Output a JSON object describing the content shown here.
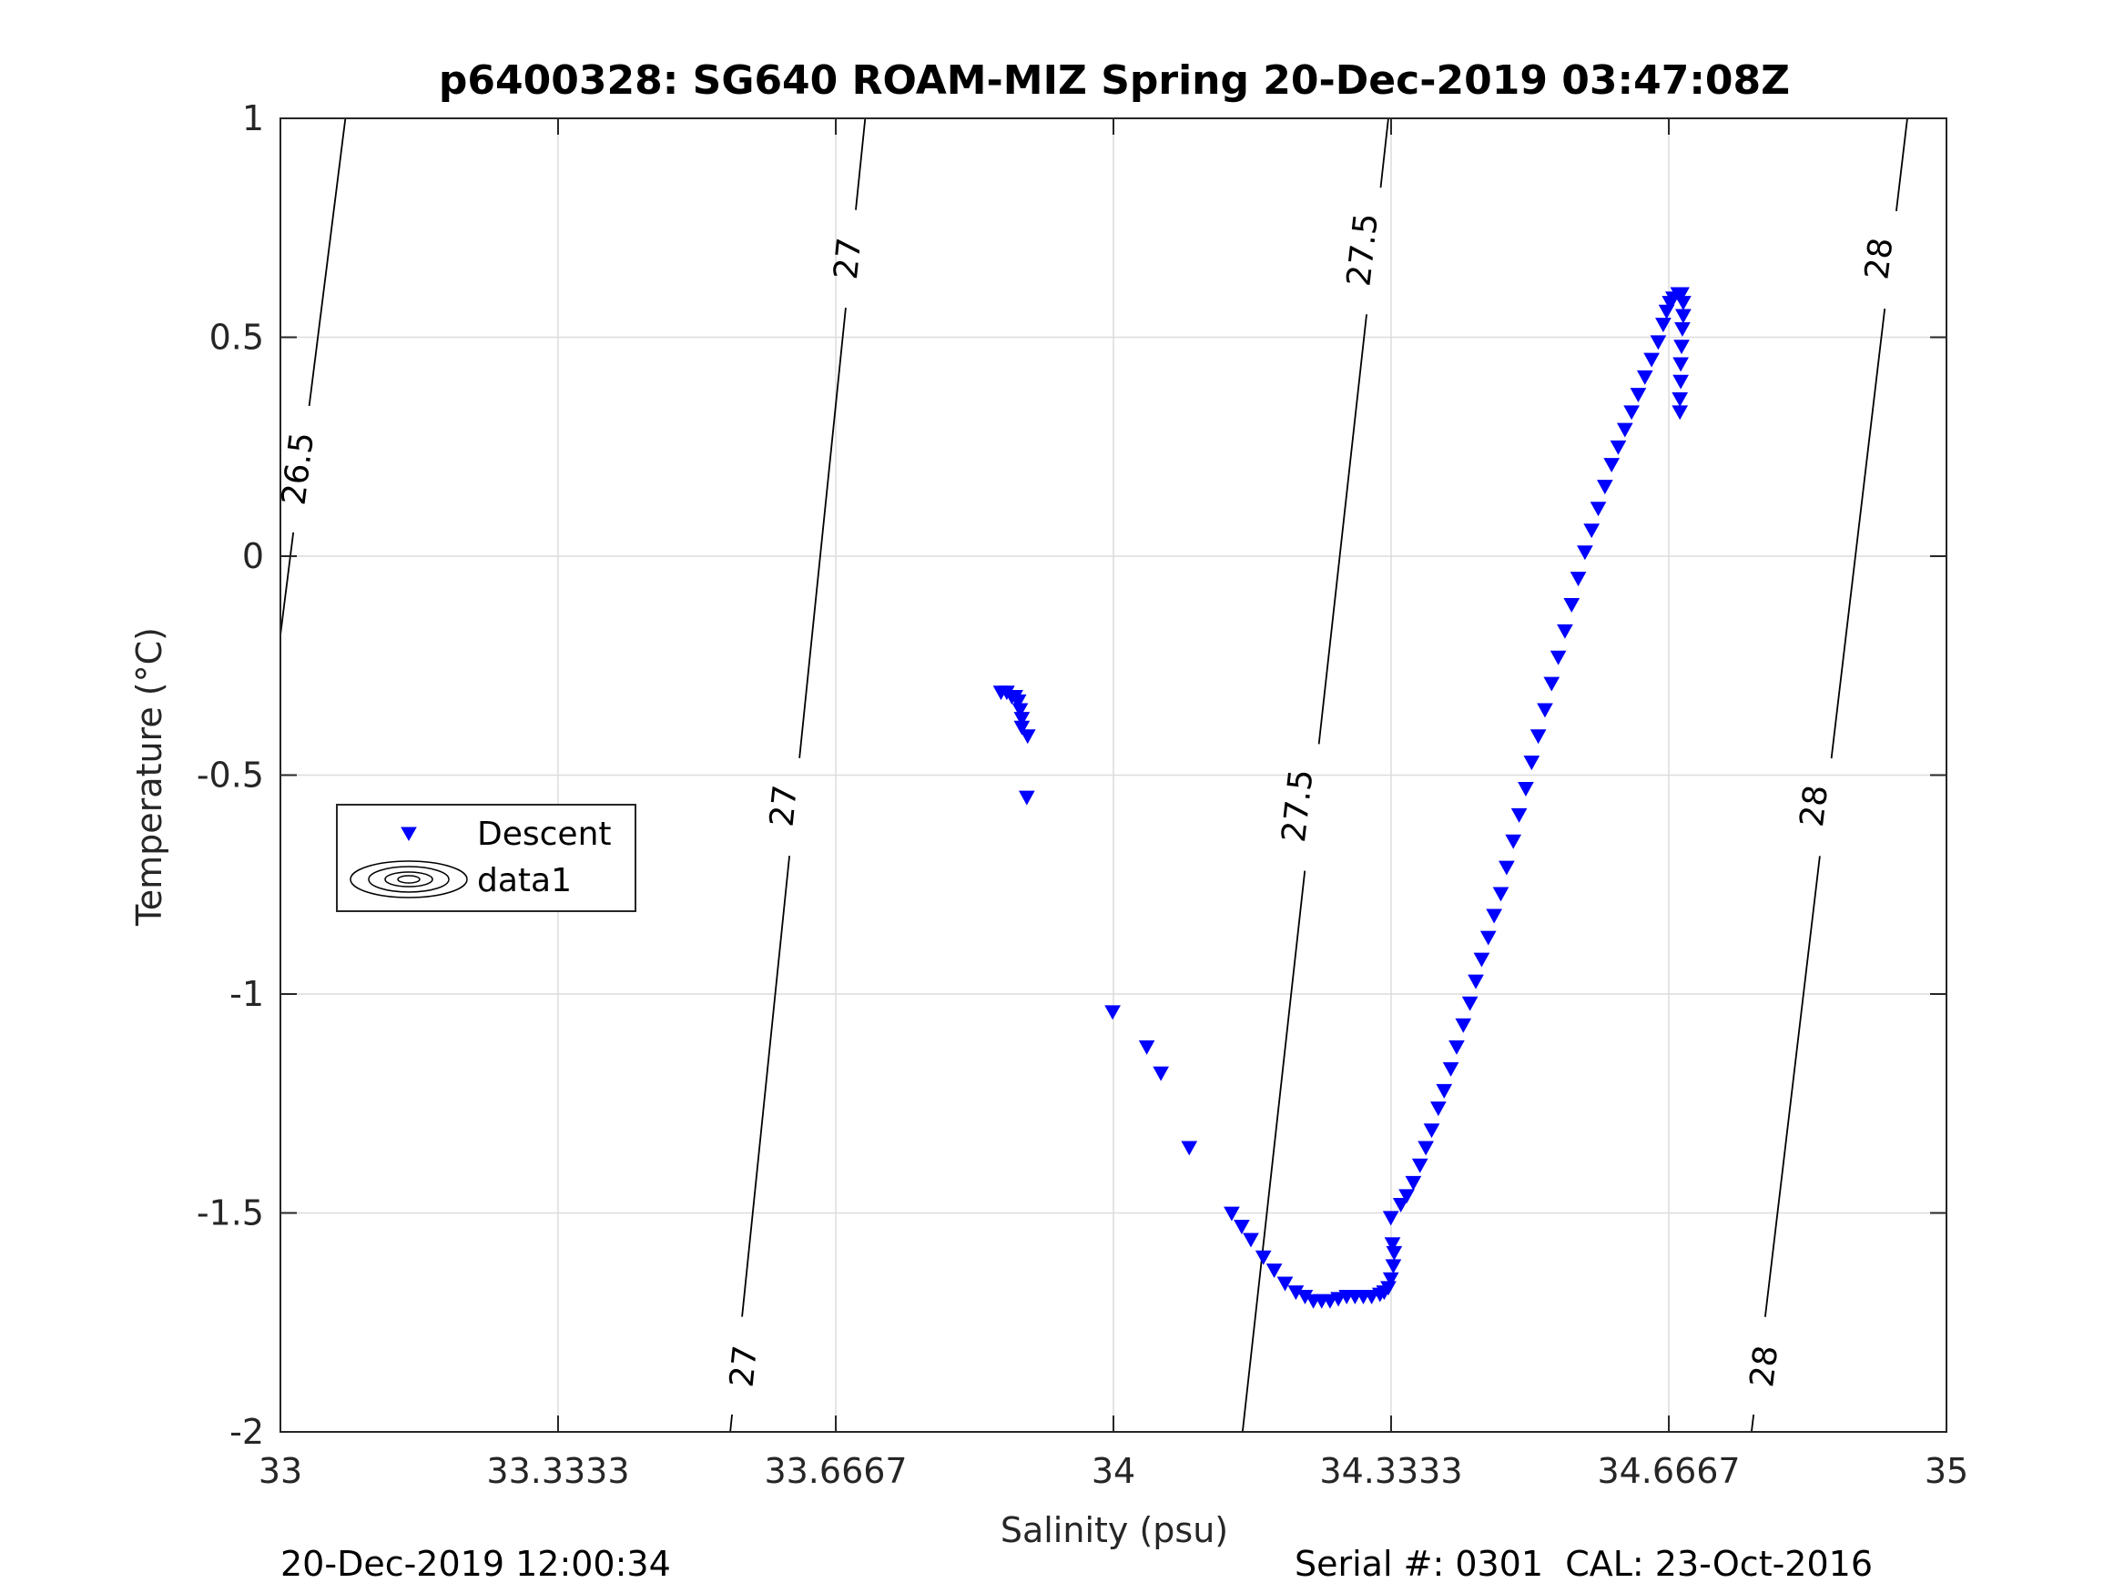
{
  "chart_data": {
    "type": "scatter",
    "title": "p6400328: SG640 ROAM-MIZ Spring 20-Dec-2019 03:47:08Z",
    "xlabel": "Salinity (psu)",
    "ylabel": "Temperature (°C)",
    "xlim": [
      33,
      35
    ],
    "ylim": [
      -2,
      1
    ],
    "xticks": [
      33,
      33.3333,
      33.6667,
      34,
      34.3333,
      34.6667,
      35
    ],
    "xtick_labels": [
      "33",
      "33.3333",
      "33.6667",
      "34",
      "34.3333",
      "34.6667",
      "35"
    ],
    "yticks": [
      -2,
      -1.5,
      -1,
      -0.5,
      0,
      0.5,
      1
    ],
    "ytick_labels": [
      "-2",
      "-1.5",
      "-1",
      "-0.5",
      "0",
      "0.5",
      "1"
    ],
    "grid": true,
    "legend": {
      "placement": "left-middle",
      "entries": [
        {
          "label": "Descent",
          "marker": "triangle-down",
          "color": "#0000ff"
        },
        {
          "label": "data1",
          "marker": "contour"
        }
      ]
    },
    "series": [
      {
        "name": "Descent",
        "marker": "triangle-down",
        "color": "#0000ff",
        "points": [
          [
            33.865,
            -0.31
          ],
          [
            33.872,
            -0.31
          ],
          [
            33.878,
            -0.32
          ],
          [
            33.882,
            -0.32
          ],
          [
            33.886,
            -0.33
          ],
          [
            33.888,
            -0.35
          ],
          [
            33.89,
            -0.37
          ],
          [
            33.89,
            -0.39
          ],
          [
            33.897,
            -0.41
          ],
          [
            33.896,
            -0.55
          ],
          [
            33.999,
            -1.04
          ],
          [
            34.04,
            -1.12
          ],
          [
            34.057,
            -1.18
          ],
          [
            34.091,
            -1.35
          ],
          [
            34.142,
            -1.5
          ],
          [
            34.154,
            -1.53
          ],
          [
            34.165,
            -1.56
          ],
          [
            34.18,
            -1.6
          ],
          [
            34.193,
            -1.63
          ],
          [
            34.206,
            -1.66
          ],
          [
            34.219,
            -1.68
          ],
          [
            34.23,
            -1.69
          ],
          [
            34.24,
            -1.7
          ],
          [
            34.25,
            -1.7
          ],
          [
            34.26,
            -1.7
          ],
          [
            34.27,
            -1.695
          ],
          [
            34.28,
            -1.69
          ],
          [
            34.29,
            -1.69
          ],
          [
            34.3,
            -1.69
          ],
          [
            34.31,
            -1.69
          ],
          [
            34.32,
            -1.685
          ],
          [
            34.325,
            -1.68
          ],
          [
            34.33,
            -1.67
          ],
          [
            34.333,
            -1.65
          ],
          [
            34.336,
            -1.62
          ],
          [
            34.337,
            -1.59
          ],
          [
            34.335,
            -1.57
          ],
          [
            34.333,
            -1.51
          ],
          [
            34.345,
            -1.48
          ],
          [
            34.352,
            -1.46
          ],
          [
            34.36,
            -1.43
          ],
          [
            34.368,
            -1.39
          ],
          [
            34.375,
            -1.35
          ],
          [
            34.382,
            -1.31
          ],
          [
            34.39,
            -1.26
          ],
          [
            34.397,
            -1.22
          ],
          [
            34.405,
            -1.17
          ],
          [
            34.412,
            -1.12
          ],
          [
            34.42,
            -1.07
          ],
          [
            34.428,
            -1.02
          ],
          [
            34.435,
            -0.97
          ],
          [
            34.442,
            -0.92
          ],
          [
            34.45,
            -0.87
          ],
          [
            34.457,
            -0.82
          ],
          [
            34.465,
            -0.77
          ],
          [
            34.472,
            -0.71
          ],
          [
            34.48,
            -0.65
          ],
          [
            34.487,
            -0.59
          ],
          [
            34.495,
            -0.53
          ],
          [
            34.502,
            -0.47
          ],
          [
            34.51,
            -0.41
          ],
          [
            34.518,
            -0.35
          ],
          [
            34.526,
            -0.29
          ],
          [
            34.534,
            -0.23
          ],
          [
            34.542,
            -0.17
          ],
          [
            34.55,
            -0.11
          ],
          [
            34.558,
            -0.05
          ],
          [
            34.566,
            0.01
          ],
          [
            34.574,
            0.06
          ],
          [
            34.582,
            0.11
          ],
          [
            34.59,
            0.16
          ],
          [
            34.598,
            0.21
          ],
          [
            34.606,
            0.25
          ],
          [
            34.614,
            0.29
          ],
          [
            34.622,
            0.33
          ],
          [
            34.63,
            0.37
          ],
          [
            34.638,
            0.41
          ],
          [
            34.646,
            0.45
          ],
          [
            34.654,
            0.49
          ],
          [
            34.66,
            0.53
          ],
          [
            34.664,
            0.56
          ],
          [
            34.668,
            0.58
          ],
          [
            34.672,
            0.59
          ],
          [
            34.678,
            0.6
          ],
          [
            34.682,
            0.6
          ],
          [
            34.684,
            0.58
          ],
          [
            34.684,
            0.55
          ],
          [
            34.683,
            0.52
          ],
          [
            34.682,
            0.48
          ],
          [
            34.681,
            0.44
          ],
          [
            34.681,
            0.4
          ],
          [
            34.68,
            0.36
          ],
          [
            34.68,
            0.33
          ]
        ]
      }
    ],
    "contours": [
      {
        "level": "26.5",
        "points": [
          [
            33,
            -0.18
          ],
          [
            33.078,
            1
          ]
        ],
        "labels": [
          {
            "x": 33.02,
            "y": 0.2
          }
        ]
      },
      {
        "level": "27",
        "points": [
          [
            33.54,
            -2
          ],
          [
            33.702,
            1
          ]
        ],
        "labels": [
          {
            "x": 33.555,
            "y": -1.85
          },
          {
            "x": 33.603,
            "y": -0.57
          },
          {
            "x": 33.68,
            "y": 0.68
          }
        ]
      },
      {
        "level": "27.5",
        "points": [
          [
            34.155,
            -2
          ],
          [
            34.33,
            1
          ]
        ],
        "labels": [
          {
            "x": 34.22,
            "y": -0.57
          },
          {
            "x": 34.298,
            "y": 0.7
          }
        ]
      },
      {
        "level": "28",
        "points": [
          [
            34.766,
            -2
          ],
          [
            34.953,
            1
          ]
        ],
        "labels": [
          {
            "x": 34.78,
            "y": -1.85
          },
          {
            "x": 34.84,
            "y": -0.57
          },
          {
            "x": 34.918,
            "y": 0.68
          }
        ]
      }
    ]
  },
  "footer": {
    "timestamp": "20-Dec-2019 12:00:34",
    "serial": "Serial #: 0301  CAL: 23-Oct-2016"
  }
}
